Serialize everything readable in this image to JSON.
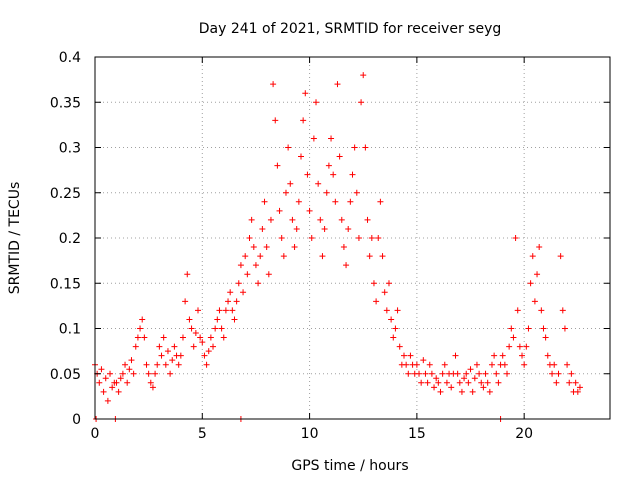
{
  "chart_data": {
    "type": "scatter",
    "title": "Day 241 of 2021, SRMTID for receiver seyg",
    "xlabel": "GPS time / hours",
    "ylabel": "SRMTID / TECUs",
    "xlim": [
      0,
      24
    ],
    "ylim": [
      0,
      0.4
    ],
    "x_ticks": [
      0,
      5,
      10,
      15,
      20
    ],
    "x_tick_labels": [
      "0",
      "5",
      "10",
      "15",
      "20"
    ],
    "y_ticks": [
      0,
      0.05,
      0.1,
      0.15,
      0.2,
      0.25,
      0.3,
      0.35,
      0.4
    ],
    "y_tick_labels": [
      "0",
      "0.05",
      "0.1",
      "0.15",
      "0.2",
      "0.25",
      "0.3",
      "0.35",
      "0.4"
    ],
    "grid": true,
    "marker": "plus",
    "color": "#ff0000",
    "series": [
      {
        "name": "SRMTID",
        "points": [
          [
            0.0,
            0.06
          ],
          [
            0.1,
            0.05
          ],
          [
            0.2,
            0.04
          ],
          [
            0.3,
            0.055
          ],
          [
            0.4,
            0.03
          ],
          [
            0.5,
            0.045
          ],
          [
            0.6,
            0.02
          ],
          [
            0.7,
            0.05
          ],
          [
            0.8,
            0.035
          ],
          [
            0.9,
            0.04
          ],
          [
            1.0,
            0.04
          ],
          [
            1.1,
            0.03
          ],
          [
            1.2,
            0.045
          ],
          [
            1.3,
            0.05
          ],
          [
            1.4,
            0.06
          ],
          [
            1.5,
            0.04
          ],
          [
            1.6,
            0.055
          ],
          [
            1.7,
            0.065
          ],
          [
            1.8,
            0.05
          ],
          [
            1.9,
            0.08
          ],
          [
            2.0,
            0.09
          ],
          [
            2.1,
            0.1
          ],
          [
            2.2,
            0.11
          ],
          [
            2.3,
            0.09
          ],
          [
            2.4,
            0.06
          ],
          [
            2.5,
            0.05
          ],
          [
            2.6,
            0.04
          ],
          [
            2.7,
            0.035
          ],
          [
            2.8,
            0.05
          ],
          [
            2.9,
            0.06
          ],
          [
            3.0,
            0.08
          ],
          [
            3.1,
            0.07
          ],
          [
            3.2,
            0.09
          ],
          [
            3.3,
            0.06
          ],
          [
            3.4,
            0.075
          ],
          [
            3.5,
            0.05
          ],
          [
            3.6,
            0.065
          ],
          [
            3.7,
            0.08
          ],
          [
            3.8,
            0.07
          ],
          [
            3.9,
            0.06
          ],
          [
            4.0,
            0.07
          ],
          [
            4.1,
            0.09
          ],
          [
            4.2,
            0.13
          ],
          [
            4.3,
            0.16
          ],
          [
            4.4,
            0.11
          ],
          [
            4.5,
            0.1
          ],
          [
            4.6,
            0.08
          ],
          [
            4.7,
            0.095
          ],
          [
            4.8,
            0.12
          ],
          [
            4.9,
            0.09
          ],
          [
            5.0,
            0.085
          ],
          [
            5.1,
            0.07
          ],
          [
            5.2,
            0.06
          ],
          [
            5.3,
            0.075
          ],
          [
            5.4,
            0.09
          ],
          [
            5.5,
            0.08
          ],
          [
            5.6,
            0.1
          ],
          [
            5.7,
            0.11
          ],
          [
            5.8,
            0.12
          ],
          [
            5.9,
            0.1
          ],
          [
            6.0,
            0.09
          ],
          [
            6.1,
            0.12
          ],
          [
            6.2,
            0.13
          ],
          [
            6.3,
            0.14
          ],
          [
            6.4,
            0.12
          ],
          [
            6.5,
            0.11
          ],
          [
            6.6,
            0.13
          ],
          [
            6.7,
            0.15
          ],
          [
            6.8,
            0.17
          ],
          [
            6.9,
            0.14
          ],
          [
            7.0,
            0.18
          ],
          [
            7.1,
            0.16
          ],
          [
            7.2,
            0.2
          ],
          [
            7.3,
            0.22
          ],
          [
            7.4,
            0.19
          ],
          [
            7.5,
            0.17
          ],
          [
            7.6,
            0.15
          ],
          [
            7.7,
            0.18
          ],
          [
            7.8,
            0.21
          ],
          [
            7.9,
            0.24
          ],
          [
            8.0,
            0.19
          ],
          [
            8.1,
            0.16
          ],
          [
            8.2,
            0.22
          ],
          [
            8.3,
            0.37
          ],
          [
            8.4,
            0.33
          ],
          [
            8.5,
            0.28
          ],
          [
            8.6,
            0.23
          ],
          [
            8.7,
            0.2
          ],
          [
            8.8,
            0.18
          ],
          [
            8.9,
            0.25
          ],
          [
            9.0,
            0.3
          ],
          [
            9.1,
            0.26
          ],
          [
            9.2,
            0.22
          ],
          [
            9.3,
            0.19
          ],
          [
            9.4,
            0.21
          ],
          [
            9.5,
            0.24
          ],
          [
            9.6,
            0.29
          ],
          [
            9.7,
            0.33
          ],
          [
            9.8,
            0.36
          ],
          [
            9.9,
            0.27
          ],
          [
            10.0,
            0.23
          ],
          [
            10.1,
            0.2
          ],
          [
            10.2,
            0.31
          ],
          [
            10.3,
            0.35
          ],
          [
            10.4,
            0.26
          ],
          [
            10.5,
            0.22
          ],
          [
            10.6,
            0.18
          ],
          [
            10.7,
            0.21
          ],
          [
            10.8,
            0.25
          ],
          [
            10.9,
            0.28
          ],
          [
            11.0,
            0.31
          ],
          [
            11.1,
            0.27
          ],
          [
            11.2,
            0.24
          ],
          [
            11.3,
            0.37
          ],
          [
            11.4,
            0.29
          ],
          [
            11.5,
            0.22
          ],
          [
            11.6,
            0.19
          ],
          [
            11.7,
            0.17
          ],
          [
            11.8,
            0.21
          ],
          [
            11.9,
            0.24
          ],
          [
            12.0,
            0.27
          ],
          [
            12.1,
            0.3
          ],
          [
            12.2,
            0.25
          ],
          [
            12.3,
            0.2
          ],
          [
            12.4,
            0.35
          ],
          [
            12.5,
            0.38
          ],
          [
            12.6,
            0.3
          ],
          [
            12.7,
            0.22
          ],
          [
            12.8,
            0.18
          ],
          [
            12.9,
            0.2
          ],
          [
            13.0,
            0.15
          ],
          [
            13.1,
            0.13
          ],
          [
            13.2,
            0.2
          ],
          [
            13.3,
            0.24
          ],
          [
            13.4,
            0.18
          ],
          [
            13.5,
            0.14
          ],
          [
            13.6,
            0.12
          ],
          [
            13.7,
            0.15
          ],
          [
            13.8,
            0.11
          ],
          [
            13.9,
            0.09
          ],
          [
            14.0,
            0.1
          ],
          [
            14.1,
            0.12
          ],
          [
            14.2,
            0.08
          ],
          [
            14.3,
            0.06
          ],
          [
            14.4,
            0.07
          ],
          [
            14.5,
            0.06
          ],
          [
            14.6,
            0.05
          ],
          [
            14.7,
            0.07
          ],
          [
            14.8,
            0.06
          ],
          [
            14.9,
            0.05
          ],
          [
            15.0,
            0.06
          ],
          [
            15.1,
            0.05
          ],
          [
            15.2,
            0.04
          ],
          [
            15.3,
            0.065
          ],
          [
            15.4,
            0.05
          ],
          [
            15.5,
            0.04
          ],
          [
            15.6,
            0.06
          ],
          [
            15.7,
            0.05
          ],
          [
            15.8,
            0.035
          ],
          [
            15.9,
            0.045
          ],
          [
            16.0,
            0.04
          ],
          [
            16.1,
            0.03
          ],
          [
            16.2,
            0.05
          ],
          [
            16.3,
            0.06
          ],
          [
            16.4,
            0.04
          ],
          [
            16.5,
            0.05
          ],
          [
            16.6,
            0.035
          ],
          [
            16.7,
            0.05
          ],
          [
            16.8,
            0.07
          ],
          [
            16.9,
            0.05
          ],
          [
            17.0,
            0.04
          ],
          [
            17.1,
            0.03
          ],
          [
            17.2,
            0.045
          ],
          [
            17.3,
            0.05
          ],
          [
            17.4,
            0.04
          ],
          [
            17.5,
            0.055
          ],
          [
            17.6,
            0.03
          ],
          [
            17.7,
            0.045
          ],
          [
            17.8,
            0.06
          ],
          [
            17.9,
            0.05
          ],
          [
            18.0,
            0.04
          ],
          [
            18.1,
            0.035
          ],
          [
            18.2,
            0.05
          ],
          [
            18.3,
            0.04
          ],
          [
            18.4,
            0.03
          ],
          [
            18.5,
            0.06
          ],
          [
            18.6,
            0.07
          ],
          [
            18.7,
            0.05
          ],
          [
            18.8,
            0.04
          ],
          [
            18.9,
            0.06
          ],
          [
            19.0,
            0.07
          ],
          [
            19.1,
            0.06
          ],
          [
            19.2,
            0.05
          ],
          [
            19.3,
            0.08
          ],
          [
            19.4,
            0.1
          ],
          [
            19.5,
            0.09
          ],
          [
            19.6,
            0.2
          ],
          [
            19.7,
            0.12
          ],
          [
            19.8,
            0.08
          ],
          [
            19.9,
            0.07
          ],
          [
            20.0,
            0.06
          ],
          [
            20.1,
            0.08
          ],
          [
            20.2,
            0.1
          ],
          [
            20.3,
            0.15
          ],
          [
            20.4,
            0.18
          ],
          [
            20.5,
            0.13
          ],
          [
            20.6,
            0.16
          ],
          [
            20.7,
            0.19
          ],
          [
            20.8,
            0.12
          ],
          [
            20.9,
            0.1
          ],
          [
            21.0,
            0.09
          ],
          [
            21.1,
            0.07
          ],
          [
            21.2,
            0.06
          ],
          [
            21.3,
            0.05
          ],
          [
            21.4,
            0.06
          ],
          [
            21.5,
            0.04
          ],
          [
            21.6,
            0.05
          ],
          [
            21.7,
            0.18
          ],
          [
            21.8,
            0.12
          ],
          [
            21.9,
            0.1
          ],
          [
            22.0,
            0.06
          ],
          [
            22.1,
            0.04
          ],
          [
            22.2,
            0.05
          ],
          [
            22.3,
            0.03
          ],
          [
            22.4,
            0.04
          ],
          [
            22.5,
            0.03
          ],
          [
            22.6,
            0.035
          ],
          [
            0.05,
            0.0
          ],
          [
            0.95,
            0.0
          ],
          [
            6.8,
            0.0
          ],
          [
            18.9,
            0.0
          ]
        ]
      }
    ]
  }
}
